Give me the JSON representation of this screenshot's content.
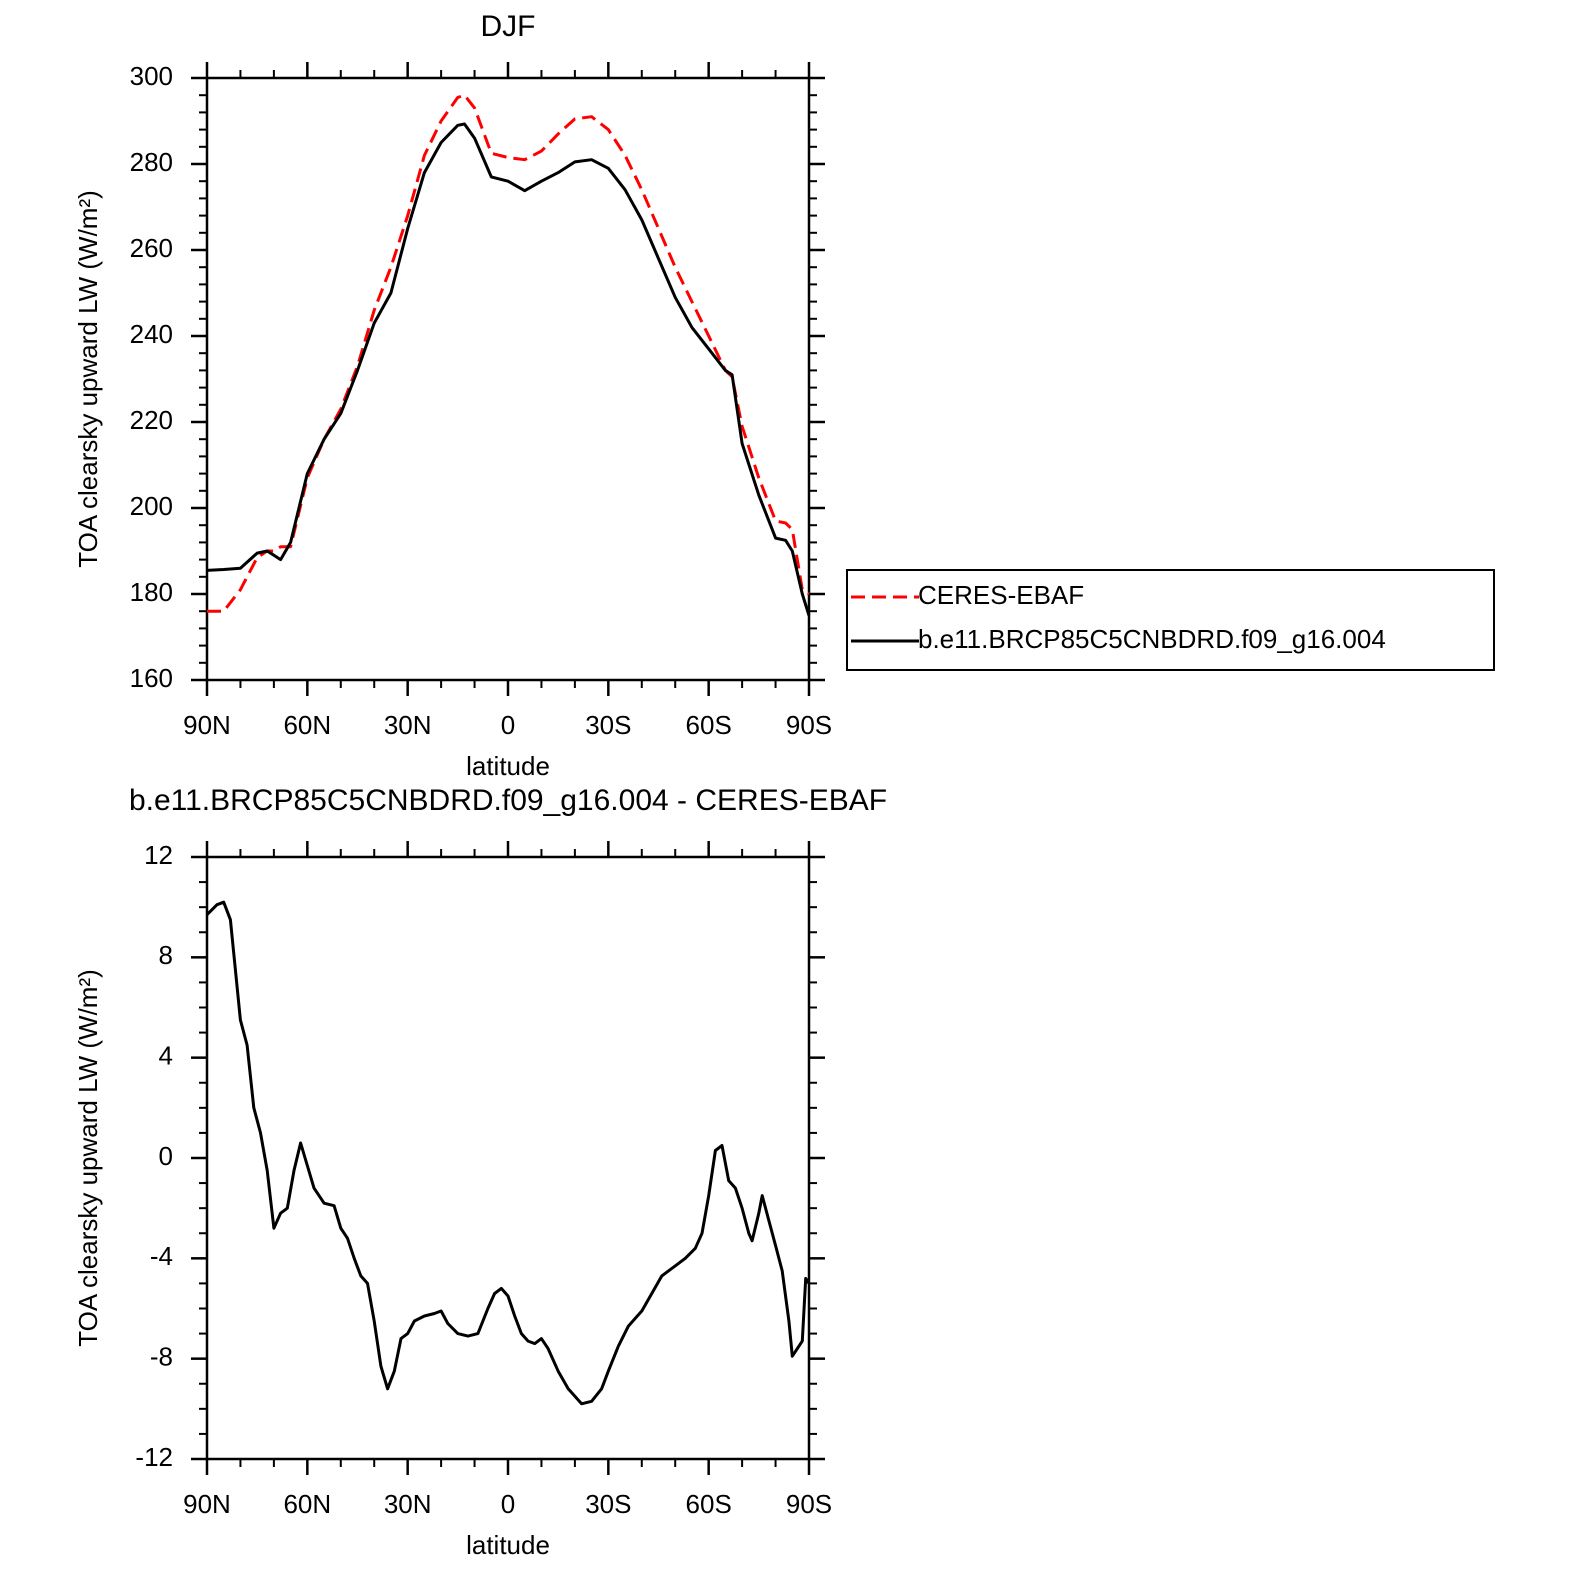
{
  "chart_data": [
    {
      "type": "line",
      "title": "DJF",
      "xlabel": "latitude",
      "ylabel": "TOA clearsky upward LW (W/m²)",
      "xlim": [
        90,
        -90
      ],
      "xticks": [
        {
          "value": 90,
          "label": "90N"
        },
        {
          "value": 60,
          "label": "60N"
        },
        {
          "value": 30,
          "label": "30N"
        },
        0,
        {
          "value": -30,
          "label": "30S"
        },
        {
          "value": -60,
          "label": "60S"
        },
        {
          "value": -90,
          "label": "90S"
        }
      ],
      "ylim": [
        160,
        300
      ],
      "yticks": [
        160,
        180,
        200,
        220,
        240,
        260,
        280,
        300
      ],
      "legend": "right",
      "x": [
        90,
        85,
        80,
        75,
        72,
        70,
        68,
        65,
        60,
        55,
        50,
        45,
        40,
        35,
        30,
        25,
        20,
        15,
        13,
        10,
        5,
        0,
        -5,
        -10,
        -15,
        -20,
        -25,
        -30,
        -35,
        -40,
        -45,
        -50,
        -55,
        -60,
        -65,
        -67,
        -70,
        -75,
        -80,
        -83,
        -85,
        -88,
        -90
      ],
      "series": [
        {
          "name": "CERES-EBAF",
          "color": "#ff0000",
          "line_style": "dashed",
          "values": [
            176,
            176,
            181,
            188.5,
            190,
            190,
            191,
            191,
            207,
            216,
            223,
            233,
            246,
            256,
            268,
            282,
            290,
            295.5,
            296,
            293,
            282.5,
            281.5,
            281,
            283,
            287,
            290.5,
            291,
            288,
            282,
            274,
            265,
            256,
            248,
            240,
            232,
            230.5,
            219,
            207,
            197,
            196.5,
            195,
            181,
            180
          ]
        },
        {
          "name": "b.e11.BRCP85C5CNBDRD.f09_g16.004",
          "color": "#000000",
          "line_style": "solid",
          "values": [
            185.5,
            185.7,
            186,
            189.5,
            190,
            189,
            188,
            192,
            208,
            216,
            222,
            232,
            243,
            250,
            265,
            278,
            285,
            289,
            289.3,
            286,
            277,
            276,
            273.8,
            276,
            278,
            280.5,
            281,
            279,
            274,
            267,
            258,
            249,
            242,
            237,
            232,
            231,
            215,
            203,
            193,
            192.5,
            190,
            180,
            175
          ]
        }
      ]
    },
    {
      "type": "line",
      "title": "b.e11.BRCP85C5CNBDRD.f09_g16.004 - CERES-EBAF",
      "xlabel": "latitude",
      "ylabel": "TOA clearsky upward LW (W/m²)",
      "xlim": [
        90,
        -90
      ],
      "xticks": [
        {
          "value": 90,
          "label": "90N"
        },
        {
          "value": 60,
          "label": "60N"
        },
        {
          "value": 30,
          "label": "30N"
        },
        0,
        {
          "value": -30,
          "label": "30S"
        },
        {
          "value": -60,
          "label": "60S"
        },
        {
          "value": -90,
          "label": "90S"
        }
      ],
      "ylim": [
        -12,
        12
      ],
      "yticks": [
        -12,
        -8,
        -4,
        0,
        4,
        8,
        12
      ],
      "x": [
        90,
        87,
        85,
        83,
        80,
        78,
        76,
        74,
        72,
        70,
        68,
        66,
        64,
        62,
        60,
        58,
        55,
        52,
        50,
        48,
        46,
        44,
        42,
        40,
        38,
        36,
        34,
        32,
        30,
        28,
        25,
        22,
        20,
        18,
        15,
        12,
        9,
        6,
        4,
        2,
        0,
        -2,
        -4,
        -6,
        -8,
        -10,
        -12,
        -15,
        -18,
        -20,
        -22,
        -25,
        -28,
        -30,
        -33,
        -36,
        -40,
        -43,
        -46,
        -50,
        -53,
        -56,
        -58,
        -60,
        -62,
        -64,
        -66,
        -68,
        -70,
        -72,
        -73,
        -75,
        -76,
        -78,
        -80,
        -82,
        -84,
        -85,
        -87,
        -88,
        -89,
        -90
      ],
      "color": "#000000",
      "values": [
        9.7,
        10.1,
        10.2,
        9.5,
        5.5,
        4.5,
        2,
        1,
        -0.5,
        -2.8,
        -2.2,
        -2,
        -0.5,
        0.6,
        -0.3,
        -1.2,
        -1.8,
        -1.9,
        -2.8,
        -3.2,
        -4,
        -4.7,
        -5,
        -6.5,
        -8.3,
        -9.2,
        -8.5,
        -7.2,
        -7,
        -6.5,
        -6.3,
        -6.2,
        -6.1,
        -6.6,
        -7,
        -7.1,
        -7,
        -6,
        -5.4,
        -5.2,
        -5.5,
        -6.3,
        -7,
        -7.3,
        -7.4,
        -7.2,
        -7.6,
        -8.5,
        -9.2,
        -9.5,
        -9.8,
        -9.7,
        -9.2,
        -8.5,
        -7.5,
        -6.7,
        -6.1,
        -5.4,
        -4.7,
        -4.3,
        -4,
        -3.6,
        -3,
        -1.5,
        0.3,
        0.5,
        -0.9,
        -1.2,
        -2,
        -3,
        -3.3,
        -2.2,
        -1.5,
        -2.5,
        -3.5,
        -4.5,
        -6.5,
        -7.9,
        -7.5,
        -7.3,
        -4.8,
        -5
      ]
    }
  ]
}
